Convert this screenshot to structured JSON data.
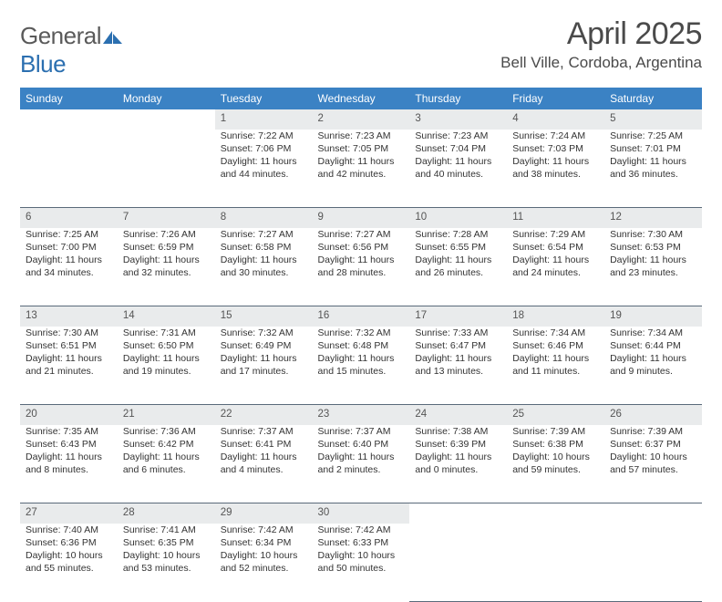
{
  "logo": {
    "text1": "General",
    "text2": "Blue"
  },
  "title": "April 2025",
  "location": "Bell Ville, Cordoba, Argentina",
  "dayHeaders": [
    "Sunday",
    "Monday",
    "Tuesday",
    "Wednesday",
    "Thursday",
    "Friday",
    "Saturday"
  ],
  "colors": {
    "headerBg": "#3b82c4",
    "headerText": "#ffffff",
    "daynumBg": "#e9ebec",
    "rowBorder": "#5a6a7a",
    "logoAccent": "#2b6fb0",
    "textPrimary": "#333333",
    "textMuted": "#555555"
  },
  "weeks": [
    [
      null,
      null,
      {
        "n": "1",
        "sr": "Sunrise: 7:22 AM",
        "ss": "Sunset: 7:06 PM",
        "dl": "Daylight: 11 hours and 44 minutes."
      },
      {
        "n": "2",
        "sr": "Sunrise: 7:23 AM",
        "ss": "Sunset: 7:05 PM",
        "dl": "Daylight: 11 hours and 42 minutes."
      },
      {
        "n": "3",
        "sr": "Sunrise: 7:23 AM",
        "ss": "Sunset: 7:04 PM",
        "dl": "Daylight: 11 hours and 40 minutes."
      },
      {
        "n": "4",
        "sr": "Sunrise: 7:24 AM",
        "ss": "Sunset: 7:03 PM",
        "dl": "Daylight: 11 hours and 38 minutes."
      },
      {
        "n": "5",
        "sr": "Sunrise: 7:25 AM",
        "ss": "Sunset: 7:01 PM",
        "dl": "Daylight: 11 hours and 36 minutes."
      }
    ],
    [
      {
        "n": "6",
        "sr": "Sunrise: 7:25 AM",
        "ss": "Sunset: 7:00 PM",
        "dl": "Daylight: 11 hours and 34 minutes."
      },
      {
        "n": "7",
        "sr": "Sunrise: 7:26 AM",
        "ss": "Sunset: 6:59 PM",
        "dl": "Daylight: 11 hours and 32 minutes."
      },
      {
        "n": "8",
        "sr": "Sunrise: 7:27 AM",
        "ss": "Sunset: 6:58 PM",
        "dl": "Daylight: 11 hours and 30 minutes."
      },
      {
        "n": "9",
        "sr": "Sunrise: 7:27 AM",
        "ss": "Sunset: 6:56 PM",
        "dl": "Daylight: 11 hours and 28 minutes."
      },
      {
        "n": "10",
        "sr": "Sunrise: 7:28 AM",
        "ss": "Sunset: 6:55 PM",
        "dl": "Daylight: 11 hours and 26 minutes."
      },
      {
        "n": "11",
        "sr": "Sunrise: 7:29 AM",
        "ss": "Sunset: 6:54 PM",
        "dl": "Daylight: 11 hours and 24 minutes."
      },
      {
        "n": "12",
        "sr": "Sunrise: 7:30 AM",
        "ss": "Sunset: 6:53 PM",
        "dl": "Daylight: 11 hours and 23 minutes."
      }
    ],
    [
      {
        "n": "13",
        "sr": "Sunrise: 7:30 AM",
        "ss": "Sunset: 6:51 PM",
        "dl": "Daylight: 11 hours and 21 minutes."
      },
      {
        "n": "14",
        "sr": "Sunrise: 7:31 AM",
        "ss": "Sunset: 6:50 PM",
        "dl": "Daylight: 11 hours and 19 minutes."
      },
      {
        "n": "15",
        "sr": "Sunrise: 7:32 AM",
        "ss": "Sunset: 6:49 PM",
        "dl": "Daylight: 11 hours and 17 minutes."
      },
      {
        "n": "16",
        "sr": "Sunrise: 7:32 AM",
        "ss": "Sunset: 6:48 PM",
        "dl": "Daylight: 11 hours and 15 minutes."
      },
      {
        "n": "17",
        "sr": "Sunrise: 7:33 AM",
        "ss": "Sunset: 6:47 PM",
        "dl": "Daylight: 11 hours and 13 minutes."
      },
      {
        "n": "18",
        "sr": "Sunrise: 7:34 AM",
        "ss": "Sunset: 6:46 PM",
        "dl": "Daylight: 11 hours and 11 minutes."
      },
      {
        "n": "19",
        "sr": "Sunrise: 7:34 AM",
        "ss": "Sunset: 6:44 PM",
        "dl": "Daylight: 11 hours and 9 minutes."
      }
    ],
    [
      {
        "n": "20",
        "sr": "Sunrise: 7:35 AM",
        "ss": "Sunset: 6:43 PM",
        "dl": "Daylight: 11 hours and 8 minutes."
      },
      {
        "n": "21",
        "sr": "Sunrise: 7:36 AM",
        "ss": "Sunset: 6:42 PM",
        "dl": "Daylight: 11 hours and 6 minutes."
      },
      {
        "n": "22",
        "sr": "Sunrise: 7:37 AM",
        "ss": "Sunset: 6:41 PM",
        "dl": "Daylight: 11 hours and 4 minutes."
      },
      {
        "n": "23",
        "sr": "Sunrise: 7:37 AM",
        "ss": "Sunset: 6:40 PM",
        "dl": "Daylight: 11 hours and 2 minutes."
      },
      {
        "n": "24",
        "sr": "Sunrise: 7:38 AM",
        "ss": "Sunset: 6:39 PM",
        "dl": "Daylight: 11 hours and 0 minutes."
      },
      {
        "n": "25",
        "sr": "Sunrise: 7:39 AM",
        "ss": "Sunset: 6:38 PM",
        "dl": "Daylight: 10 hours and 59 minutes."
      },
      {
        "n": "26",
        "sr": "Sunrise: 7:39 AM",
        "ss": "Sunset: 6:37 PM",
        "dl": "Daylight: 10 hours and 57 minutes."
      }
    ],
    [
      {
        "n": "27",
        "sr": "Sunrise: 7:40 AM",
        "ss": "Sunset: 6:36 PM",
        "dl": "Daylight: 10 hours and 55 minutes."
      },
      {
        "n": "28",
        "sr": "Sunrise: 7:41 AM",
        "ss": "Sunset: 6:35 PM",
        "dl": "Daylight: 10 hours and 53 minutes."
      },
      {
        "n": "29",
        "sr": "Sunrise: 7:42 AM",
        "ss": "Sunset: 6:34 PM",
        "dl": "Daylight: 10 hours and 52 minutes."
      },
      {
        "n": "30",
        "sr": "Sunrise: 7:42 AM",
        "ss": "Sunset: 6:33 PM",
        "dl": "Daylight: 10 hours and 50 minutes."
      },
      null,
      null,
      null
    ]
  ]
}
